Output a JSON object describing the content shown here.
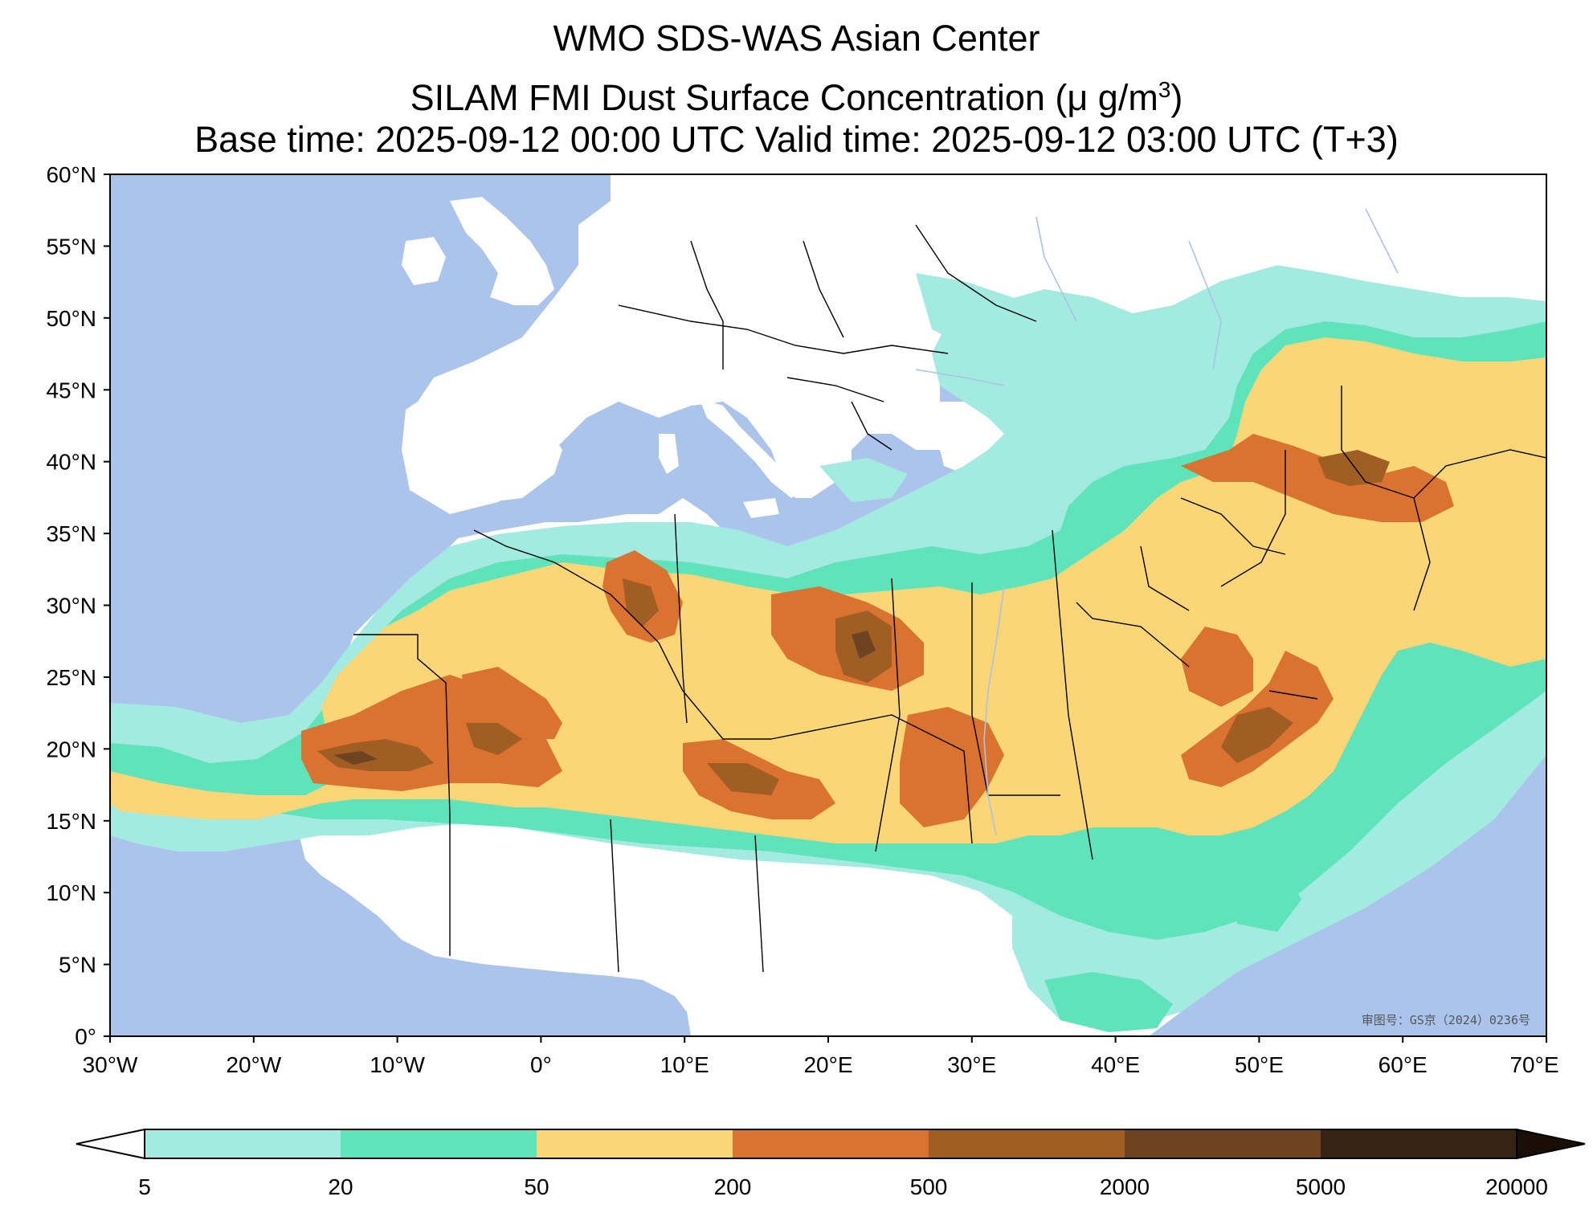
{
  "header": {
    "line1": "WMO SDS-WAS Asian Center",
    "line2_text": "SILAM FMI Dust Surface Concentration (μ g/m",
    "line2_sup": "3",
    "line2_close": ")",
    "line3": "Base time: 2025-09-12 00:00 UTC Valid time: 2025-09-12 03:00 UTC (T+3)"
  },
  "map": {
    "extent": {
      "lon": [
        -30,
        70
      ],
      "lat": [
        0,
        60
      ]
    },
    "lat_ticks": [
      "60°N",
      "55°N",
      "50°N",
      "45°N",
      "40°N",
      "35°N",
      "30°N",
      "25°N",
      "20°N",
      "15°N",
      "10°N",
      "5°N",
      "0°"
    ],
    "lon_ticks": [
      "30°W",
      "20°W",
      "10°W",
      "0°",
      "10°E",
      "20°E",
      "30°E",
      "40°E",
      "50°E",
      "60°E",
      "70°E"
    ],
    "watermark": "审图号：GS京（2024）0236号",
    "colors": {
      "ocean": "#aac4ec",
      "land": "#ffffff",
      "border": "#000000",
      "river": "#a9c4e6"
    }
  },
  "colorbar": {
    "levels": [
      "5",
      "20",
      "50",
      "200",
      "500",
      "2000",
      "5000",
      "20000"
    ],
    "colors": [
      "#a3ebe0",
      "#5ee3bb",
      "#fad677",
      "#da7230",
      "#a05e25",
      "#6e4420",
      "#362313"
    ],
    "under_color": "#ffffff",
    "over_color": "#1a0f06"
  }
}
